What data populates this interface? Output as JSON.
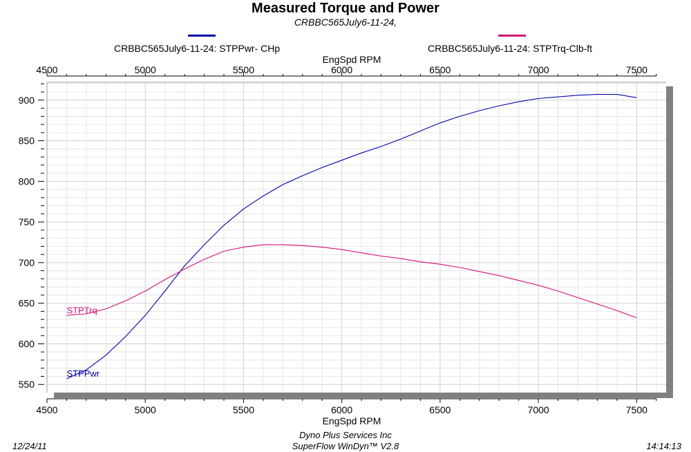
{
  "chart_data": {
    "type": "line",
    "title": "Measured Torque and Power",
    "subtitle": "CRBBC565July6-11-24,",
    "xlabel": "EngSpd  RPM",
    "ylabel": "",
    "xlim": [
      4500,
      7650
    ],
    "ylim": [
      540,
      922
    ],
    "x_ticks": [
      "4500",
      "5000",
      "5500",
      "6000",
      "6500",
      "7000",
      "7500"
    ],
    "y_ticks": [
      "550",
      "600",
      "650",
      "700",
      "750",
      "800",
      "850",
      "900"
    ],
    "grid": true,
    "legend_position": "top",
    "x": [
      4600,
      4700,
      4800,
      4900,
      5000,
      5100,
      5200,
      5300,
      5400,
      5500,
      5600,
      5700,
      5800,
      5900,
      6000,
      6100,
      6200,
      6300,
      6400,
      6500,
      6600,
      6700,
      6800,
      6900,
      7000,
      7100,
      7200,
      7300,
      7400,
      7500
    ],
    "series": [
      {
        "name": "CRBBC565July6-11-24: STPPwr- CHp",
        "inline_label": "STPPwr",
        "color": "#0000a8",
        "values": [
          557,
          568,
          586,
          609,
          635,
          665,
          696,
          722,
          746,
          766,
          782,
          796,
          807,
          817,
          826,
          835,
          843,
          852,
          862,
          872,
          880,
          887,
          893,
          898,
          902,
          904,
          906,
          907,
          907,
          903
        ]
      },
      {
        "name": "CRBBC565July6-11-24: STPTrq-Clb-ft",
        "inline_label": "STPTrq",
        "color": "#d0107a",
        "values": [
          635,
          637,
          643,
          653,
          665,
          679,
          692,
          704,
          714,
          719,
          722,
          722,
          721,
          719,
          716,
          712,
          708,
          705,
          701,
          698,
          694,
          689,
          684,
          678,
          672,
          665,
          657,
          649,
          641,
          632
        ]
      }
    ]
  },
  "footer": {
    "date": "12/24/11",
    "company": "Dyno Plus Services Inc",
    "software": "SuperFlow WinDyn™ V2.8",
    "time": "14:14:13"
  }
}
